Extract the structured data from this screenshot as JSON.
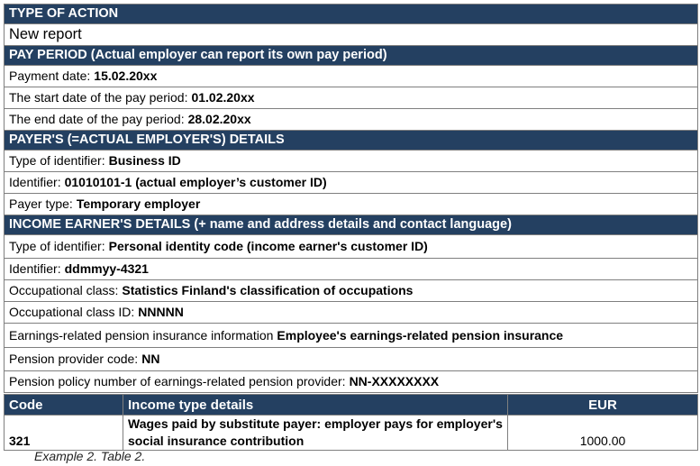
{
  "sections": [
    {
      "title": "TYPE OF ACTION",
      "rows": [
        {
          "label": "New report"
        }
      ]
    },
    {
      "title": "PAY PERIOD (Actual employer can report its own pay period)",
      "rows": [
        {
          "label": "Payment date:",
          "value": "15.02.20xx"
        },
        {
          "label": "The start date of the pay period:",
          "value": "01.02.20xx"
        },
        {
          "label": "The end date of the pay period:",
          "value": "28.02.20xx"
        }
      ]
    },
    {
      "title": "PAYER'S (=ACTUAL EMPLOYER'S) DETAILS",
      "rows": [
        {
          "label": "Type of identifier:",
          "value": "Business ID"
        },
        {
          "label": "Identifier:",
          "value": "01010101-1 (actual employer’s customer ID)"
        },
        {
          "label": "Payer type:",
          "value": "Temporary employer"
        }
      ]
    },
    {
      "title": "INCOME EARNER'S DETAILS (+ name and address details and contact language)",
      "rows": [
        {
          "label": "Type of identifier:",
          "value": "Personal identity code (income earner's customer ID)"
        },
        {
          "label": "Identifier:",
          "value": "ddmmyy-4321"
        },
        {
          "label": "Occupational class:",
          "value": "Statistics Finland's classification of occupations"
        },
        {
          "label": "Occupational class ID:",
          "value": "NNNNN"
        },
        {
          "label": "Earnings-related pension insurance information",
          "value": "Employee's earnings-related pension insurance"
        },
        {
          "label": "Pension provider code:",
          "value": "NN"
        },
        {
          "label": "Pension policy number of earnings-related pension provider:",
          "value": "NN-XXXXXXXX"
        }
      ]
    }
  ],
  "income_table": {
    "headers": [
      "Code",
      "Income type details",
      "EUR"
    ],
    "rows": [
      [
        "321",
        "Wages paid by substitute payer: employer pays for employer's social insurance contribution",
        "1000.00"
      ]
    ]
  },
  "caption": "Example 2. Table 2."
}
